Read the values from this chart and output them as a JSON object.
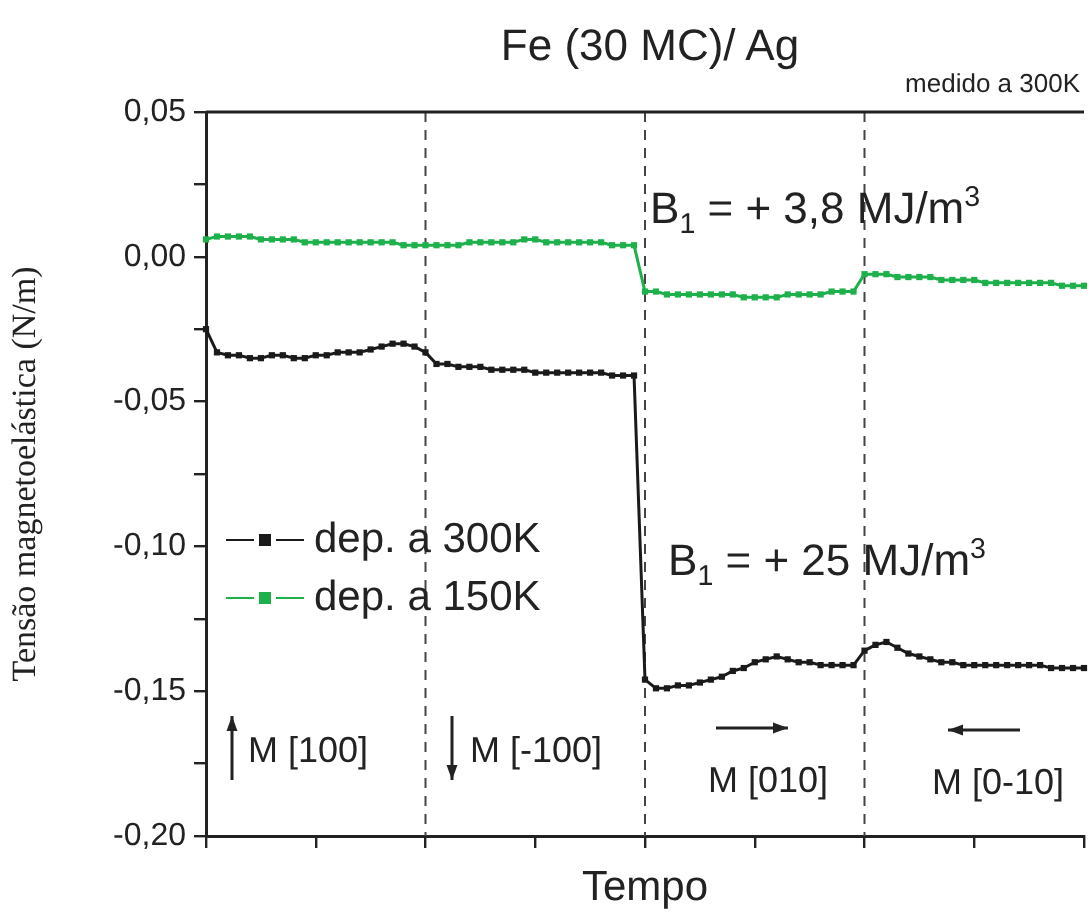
{
  "chart_data": {
    "type": "line",
    "title": "Fe (30 MC)/ Ag",
    "xlabel": "Tempo",
    "ylabel": "Tensão magnetoelástica (N/m)",
    "categories": [
      null,
      null,
      null,
      null,
      null,
      null,
      null,
      null,
      null,
      null,
      null,
      null,
      null,
      null,
      null,
      null,
      null,
      null,
      null,
      null,
      null,
      null,
      null,
      null,
      null,
      null,
      null,
      null,
      null,
      null,
      null,
      null,
      null,
      null,
      null,
      null,
      null,
      null,
      null,
      null,
      null,
      null,
      null,
      null,
      null,
      null,
      null,
      null,
      null,
      null,
      null,
      null,
      null,
      null,
      null,
      null,
      null,
      null,
      null,
      null,
      null,
      null,
      null,
      null,
      null,
      null,
      null,
      null,
      null,
      null,
      null,
      null,
      null,
      null,
      null,
      null,
      null,
      null,
      null,
      null,
      null
    ],
    "ylim": [
      -0.2,
      0.05
    ],
    "yticks": [
      {
        "value": -0.2,
        "label": "-0,20"
      },
      {
        "value": -0.175,
        "label": null
      },
      {
        "value": -0.15,
        "label": "-0,15"
      },
      {
        "value": -0.125,
        "label": null
      },
      {
        "value": -0.1,
        "label": "-0,10"
      },
      {
        "value": -0.075,
        "label": null
      },
      {
        "value": -0.05,
        "label": "-0,05"
      },
      {
        "value": -0.025,
        "label": null
      },
      {
        "value": 0,
        "label": "0,00"
      },
      {
        "value": 0.025,
        "label": null
      },
      {
        "value": 0.05,
        "label": "0,05"
      }
    ],
    "tick_labels": "y",
    "grid": "x",
    "legend": "left",
    "marker": "square",
    "line_style": "solid",
    "series": [
      {
        "name": "dep. a 300K",
        "color": "#1a1a1a",
        "values": [
          -0.025,
          -0.033,
          -0.034,
          -0.034,
          -0.035,
          -0.035,
          -0.034,
          -0.034,
          -0.035,
          -0.035,
          -0.034,
          -0.034,
          -0.033,
          -0.033,
          -0.033,
          -0.032,
          -0.031,
          -0.03,
          -0.03,
          -0.031,
          -0.033,
          -0.037,
          -0.037,
          -0.038,
          -0.038,
          -0.038,
          -0.039,
          -0.039,
          -0.039,
          -0.039,
          -0.04,
          -0.04,
          -0.04,
          -0.04,
          -0.04,
          -0.04,
          -0.04,
          -0.041,
          -0.041,
          -0.041,
          -0.146,
          -0.149,
          -0.149,
          -0.148,
          -0.148,
          -0.147,
          -0.146,
          -0.145,
          -0.143,
          -0.142,
          -0.14,
          -0.139,
          -0.138,
          -0.139,
          -0.14,
          -0.14,
          -0.141,
          -0.141,
          -0.141,
          -0.141,
          -0.136,
          -0.134,
          -0.133,
          -0.135,
          -0.137,
          -0.138,
          -0.139,
          -0.14,
          -0.14,
          -0.141,
          -0.141,
          -0.141,
          -0.141,
          -0.141,
          -0.141,
          -0.141,
          -0.141,
          -0.142,
          -0.142,
          -0.142,
          -0.142
        ]
      },
      {
        "name": "dep. a 150K",
        "color": "#1db04b",
        "values": [
          0.006,
          0.007,
          0.007,
          0.007,
          0.007,
          0.006,
          0.006,
          0.006,
          0.006,
          0.005,
          0.005,
          0.005,
          0.005,
          0.005,
          0.005,
          0.005,
          0.005,
          0.005,
          0.004,
          0.004,
          0.004,
          0.004,
          0.004,
          0.004,
          0.005,
          0.005,
          0.005,
          0.005,
          0.005,
          0.006,
          0.006,
          0.005,
          0.005,
          0.005,
          0.005,
          0.005,
          0.005,
          0.004,
          0.004,
          0.004,
          -0.012,
          -0.012,
          -0.013,
          -0.013,
          -0.013,
          -0.013,
          -0.013,
          -0.013,
          -0.013,
          -0.014,
          -0.014,
          -0.014,
          -0.014,
          -0.013,
          -0.013,
          -0.013,
          -0.013,
          -0.012,
          -0.012,
          -0.012,
          -0.006,
          -0.006,
          -0.006,
          -0.007,
          -0.007,
          -0.007,
          -0.007,
          -0.008,
          -0.008,
          -0.008,
          -0.008,
          -0.009,
          -0.009,
          -0.009,
          -0.009,
          -0.009,
          -0.009,
          -0.009,
          -0.01,
          -0.01,
          -0.01
        ]
      }
    ],
    "annotations": [
      "medido a 300K",
      "B$_{1}$ = + 3,8 MJ/m$^{3}$",
      "B$_{1}$ = + 25 MJ/m$^{3}$",
      "M [100]",
      "M [-100]",
      "M [010]",
      "M [0-10]"
    ]
  }
}
